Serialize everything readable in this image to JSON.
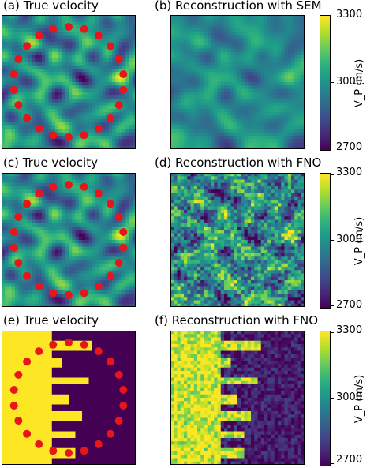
{
  "chart_data": [
    {
      "type": "heatmap",
      "title": "(a) True velocity",
      "field": "random",
      "seed": 11,
      "sources": "circle"
    },
    {
      "type": "heatmap",
      "title": "(b) Reconstruction with SEM",
      "field": "smooth",
      "seed": 11,
      "colorbar": {
        "label": "V_P (m/s)",
        "ticks": [
          "3300",
          "3000",
          "2700"
        ],
        "range": [
          2700,
          3300
        ]
      }
    },
    {
      "type": "heatmap",
      "title": "(c) True velocity",
      "field": "random",
      "seed": 11,
      "sources": "circle"
    },
    {
      "type": "heatmap",
      "title": "(d) Reconstruction with FNO",
      "field": "noisy",
      "seed": 11,
      "colorbar": {
        "label": "V_P (m/s)",
        "ticks": [
          "3300",
          "3000",
          "2700"
        ],
        "range": [
          2700,
          3300
        ]
      }
    },
    {
      "type": "heatmap",
      "title": "(e) True velocity",
      "field": "step",
      "sources": "circle",
      "values": {
        "left": 3300,
        "right": 2700
      }
    },
    {
      "type": "heatmap",
      "title": "(f) Reconstruction with FNO",
      "field": "step-noisy",
      "seed": 5,
      "colorbar": {
        "label": "V_P (m/s)",
        "ticks": [
          "3300",
          "3000",
          "2700"
        ],
        "range": [
          2700,
          3300
        ]
      }
    }
  ],
  "colors": {
    "source": "#e8151b"
  }
}
